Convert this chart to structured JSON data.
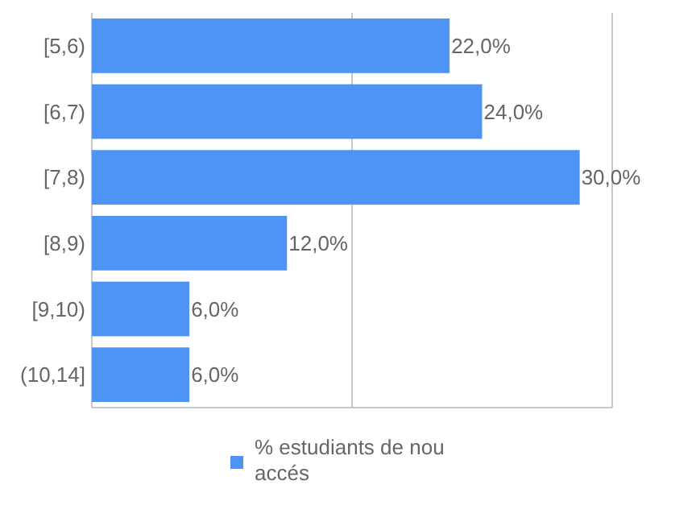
{
  "chart_data": {
    "type": "bar",
    "orientation": "horizontal",
    "categories": [
      "[5,6)",
      "[6,7)",
      "[7,8)",
      "[8,9)",
      "[9,10)",
      "(10,14]"
    ],
    "series": [
      {
        "name": "% estudiants de nou accés",
        "color": "#4d94f5",
        "values": [
          22,
          24,
          30,
          12,
          6,
          6
        ],
        "value_labels": [
          "22,0%",
          "24,0%",
          "30,0%",
          "12,0%",
          "6,0%",
          "6,0%"
        ]
      }
    ],
    "xlim": [
      0,
      32
    ],
    "xticks": [
      {
        "value": 0,
        "label": null
      },
      {
        "value": 16,
        "label": null
      },
      {
        "value": 32,
        "label": null
      }
    ],
    "tick_labels": "y",
    "legend": "bottom"
  }
}
